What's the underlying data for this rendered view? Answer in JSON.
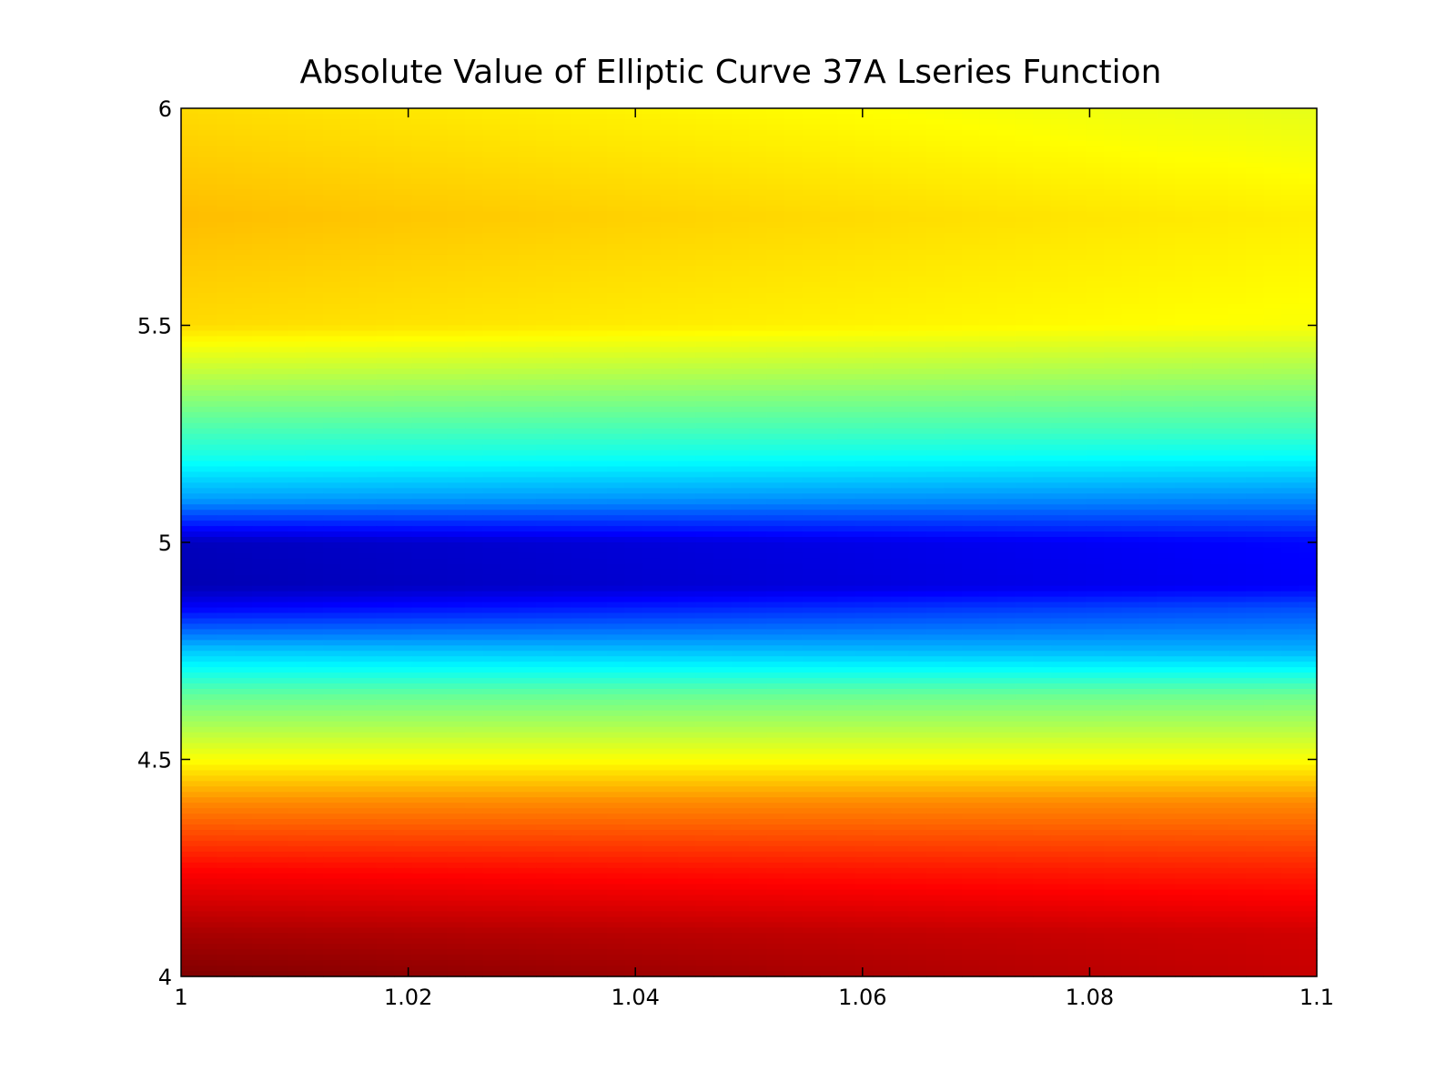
{
  "chart_data": {
    "type": "heatmap",
    "title": "Absolute Value of Elliptic Curve 37A Lseries Function",
    "xlabel": "",
    "ylabel": "",
    "xlim": [
      1,
      1.1
    ],
    "ylim": [
      4,
      6
    ],
    "x_ticks": [
      "1",
      "1.02",
      "1.04",
      "1.06",
      "1.08",
      "1.1"
    ],
    "y_ticks": [
      "4",
      "4.5",
      "5",
      "5.5",
      "6"
    ],
    "x_tick_values": [
      1,
      1.02,
      1.04,
      1.06,
      1.08,
      1.1
    ],
    "y_tick_values": [
      4,
      4.5,
      5,
      5.5,
      6
    ],
    "colormap": "jet",
    "grid": false,
    "legend": "none",
    "x": [
      1.0,
      1.1
    ],
    "y": [
      6.0,
      5.75,
      5.5,
      5.25,
      5.2,
      5.1,
      5.0,
      4.9,
      4.85,
      4.75,
      4.65,
      4.5,
      4.4,
      4.25,
      4.1,
      4.0
    ],
    "z_normalized": [
      [
        0.66,
        0.6
      ],
      [
        0.69,
        0.64
      ],
      [
        0.66,
        0.62
      ],
      [
        0.44,
        0.43
      ],
      [
        0.4,
        0.38
      ],
      [
        0.28,
        0.26
      ],
      [
        0.06,
        0.13
      ],
      [
        0.05,
        0.12
      ],
      [
        0.12,
        0.2
      ],
      [
        0.32,
        0.3
      ],
      [
        0.47,
        0.48
      ],
      [
        0.62,
        0.62
      ],
      [
        0.74,
        0.74
      ],
      [
        0.87,
        0.84
      ],
      [
        0.96,
        0.92
      ],
      [
        1.0,
        0.93
      ]
    ]
  }
}
